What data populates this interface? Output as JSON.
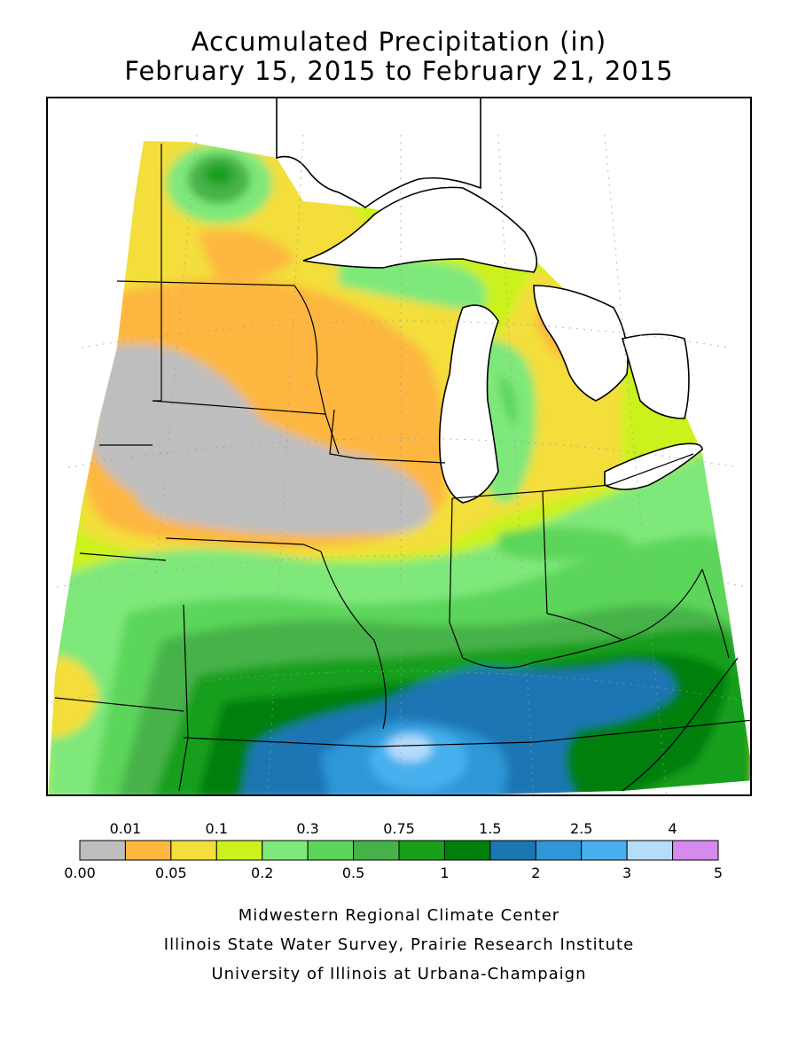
{
  "title": {
    "line1": "Accumulated Precipitation (in)",
    "line2": "February 15, 2015 to February 21, 2015"
  },
  "legend": {
    "top_labels": [
      "0.01",
      "0.1",
      "0.3",
      "0.75",
      "1.5",
      "2.5",
      "4"
    ],
    "bottom_labels": [
      "0.00",
      "0.05",
      "0.2",
      "0.5",
      "1",
      "2",
      "3",
      "5"
    ],
    "colors": [
      "#bebebe",
      "#fdb73f",
      "#f3de3a",
      "#cbf21d",
      "#7fe87a",
      "#5cd65a",
      "#46b24a",
      "#189f1a",
      "#007f0a",
      "#1b76b4",
      "#2e97d7",
      "#47b0ee",
      "#b5dcfa",
      "#d58aee"
    ]
  },
  "credits": {
    "line1": "Midwestern Regional Climate Center",
    "line2": "Illinois State Water Survey, Prairie Research Institute",
    "line3": "University of Illinois at Urbana-Champaign"
  }
}
